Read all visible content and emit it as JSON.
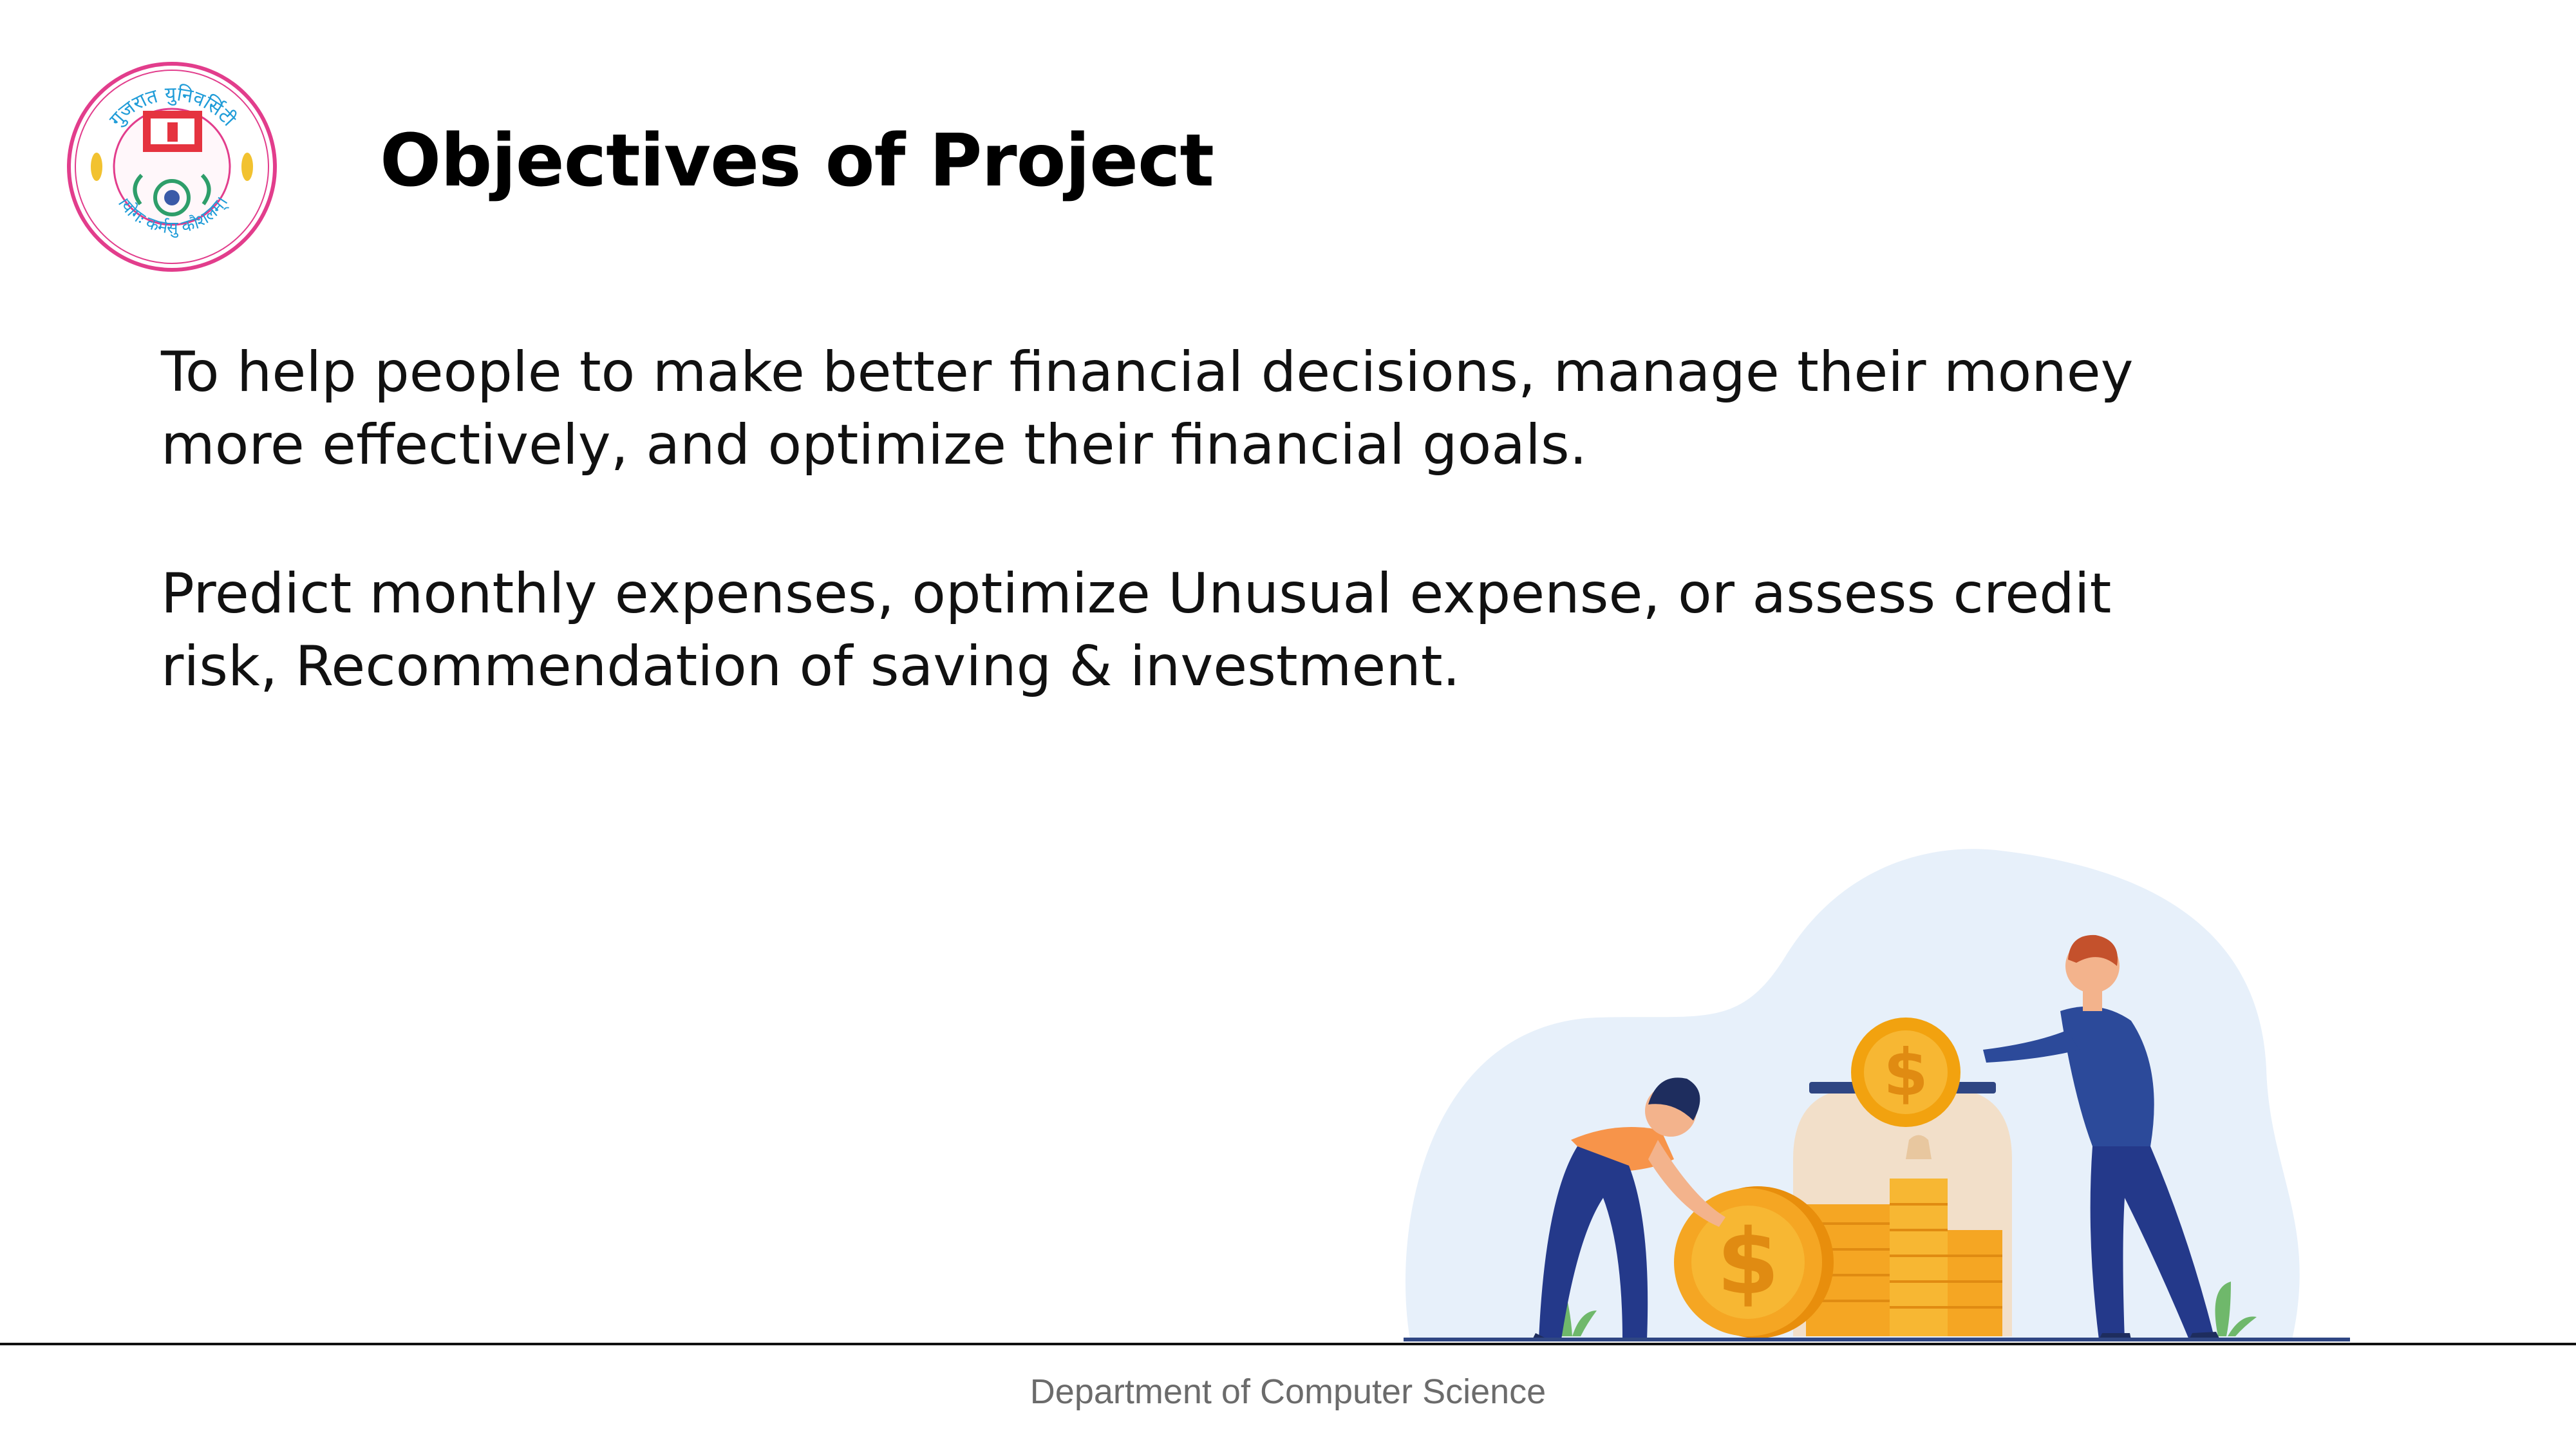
{
  "slide": {
    "title": "Objectives of Project",
    "paragraph_1": "To help people to make better financial decisions, manage their money more effectively, and optimize their financial goals.",
    "paragraph_2": "Predict monthly expenses, optimize Unusual expense, or assess credit risk, Recommendation of saving & investment."
  },
  "logo": {
    "top_text": "गुजरात युनिवर्सिटी",
    "bottom_text": "।योगः कर्मसु कौशलम्।",
    "ring_color": "#e23d8c",
    "emblem_color": "#e5333f"
  },
  "illustration": {
    "icon": "savings-jar-illustration",
    "coin_symbol": "$",
    "coin_color": "#f5a623",
    "man_color": "#2c4a9a",
    "woman_top_color": "#f7944a",
    "blob_color": "#e7f0fa"
  },
  "footer": {
    "label": "Department of Computer Science"
  }
}
